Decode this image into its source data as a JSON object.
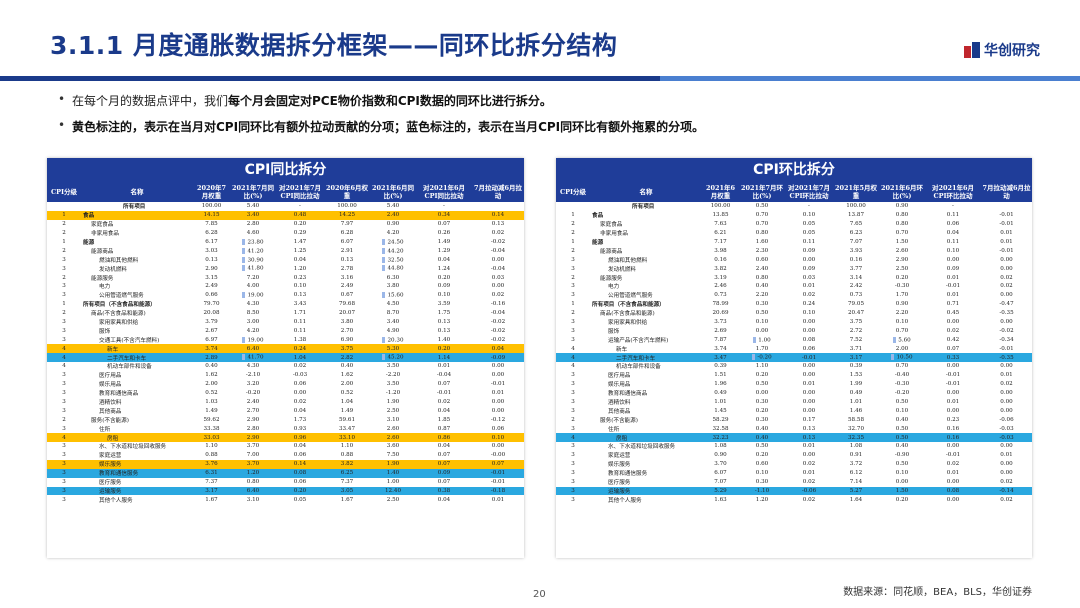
{
  "header": {
    "title": "3.1.1 月度通胀数据拆分框架——同环比拆分结构",
    "logo_text": "华创研究"
  },
  "bullets": [
    {
      "pre": "在每个月的数据点评中，我们",
      "bold": "每个月会固定对PCE物价指数和CPI数据的同环比进行拆分。",
      "post": ""
    },
    {
      "pre": "",
      "bold": "黄色标注的，表示在当月对CPI同环比有额外拉动贡献的分项；蓝色标注的，表示在当月CPI同环比有额外拖累的分项。",
      "post": ""
    }
  ],
  "left_table": {
    "title": "CPI同比拆分",
    "headers": [
      "CPI分级",
      "名称",
      "2020年7月权重",
      "2021年7月同比(%)",
      "对2021年7月CPI同比拉动",
      "2020年6月权重",
      "2021年6月同比(%)",
      "对2021年6月CPI同比拉动",
      "7月拉动减6月拉动"
    ],
    "rows": [
      [
        "",
        "所有项目",
        "100.00",
        "5.40",
        "-",
        "100.00",
        "5.40",
        "-",
        ""
      ],
      [
        "1",
        "食品",
        "14.15",
        "3.40",
        "0.48",
        "14.25",
        "2.40",
        "0.34",
        "0.14"
      ],
      [
        "2",
        "家庭食品",
        "7.85",
        "2.80",
        "0.20",
        "7.97",
        "0.90",
        "0.07",
        "0.13"
      ],
      [
        "2",
        "非家用食品",
        "6.28",
        "4.60",
        "0.29",
        "6.28",
        "4.20",
        "0.26",
        "0.02"
      ],
      [
        "1",
        "能源",
        "6.17",
        "23.80",
        "1.47",
        "6.07",
        "24.50",
        "1.49",
        "-0.02"
      ],
      [
        "2",
        "能源商品",
        "3.03",
        "41.20",
        "1.25",
        "2.91",
        "44.20",
        "1.29",
        "-0.04"
      ],
      [
        "3",
        "燃油和其他燃料",
        "0.13",
        "30.90",
        "0.04",
        "0.13",
        "32.50",
        "0.04",
        "0.00"
      ],
      [
        "3",
        "发动机燃料",
        "2.90",
        "41.80",
        "1.20",
        "2.78",
        "44.80",
        "1.24",
        "-0.04"
      ],
      [
        "2",
        "能源服务",
        "3.15",
        "7.20",
        "0.23",
        "3.16",
        "6.30",
        "0.20",
        "0.03"
      ],
      [
        "3",
        "电力",
        "2.49",
        "4.00",
        "0.10",
        "2.49",
        "3.80",
        "0.09",
        "0.00"
      ],
      [
        "3",
        "公用管道燃气服务",
        "0.66",
        "19.00",
        "0.13",
        "0.67",
        "15.60",
        "0.10",
        "0.02"
      ],
      [
        "1",
        "所有项目（不含食品和能源）",
        "79.70",
        "4.30",
        "3.43",
        "79.68",
        "4.50",
        "3.59",
        "-0.16"
      ],
      [
        "2",
        "商品(不含食品和能源)",
        "20.08",
        "8.50",
        "1.71",
        "20.07",
        "8.70",
        "1.75",
        "-0.04"
      ],
      [
        "3",
        "家用家具和供给",
        "3.79",
        "3.00",
        "0.11",
        "3.80",
        "3.40",
        "0.13",
        "-0.02"
      ],
      [
        "3",
        "服饰",
        "2.67",
        "4.20",
        "0.11",
        "2.70",
        "4.90",
        "0.13",
        "-0.02"
      ],
      [
        "3",
        "交通工具(不含汽车燃料)",
        "6.97",
        "19.00",
        "1.38",
        "6.90",
        "20.30",
        "1.40",
        "-0.02"
      ],
      [
        "4",
        "新车",
        "3.74",
        "6.40",
        "0.24",
        "3.75",
        "5.30",
        "0.20",
        "0.04"
      ],
      [
        "4",
        "二手汽车和卡车",
        "2.89",
        "41.70",
        "1.04",
        "2.82",
        "45.20",
        "1.14",
        "-0.09"
      ],
      [
        "4",
        "机动车部件和设备",
        "0.40",
        "4.30",
        "0.02",
        "0.40",
        "3.50",
        "0.01",
        "0.00"
      ],
      [
        "3",
        "医疗用品",
        "1.62",
        "-2.10",
        "-0.03",
        "1.62",
        "-2.20",
        "-0.04",
        "0.00"
      ],
      [
        "3",
        "娱乐用品",
        "2.00",
        "3.20",
        "0.06",
        "2.00",
        "3.50",
        "0.07",
        "-0.01"
      ],
      [
        "3",
        "教育和通信商品",
        "0.52",
        "-0.20",
        "0.00",
        "0.52",
        "-1.20",
        "-0.01",
        "0.01"
      ],
      [
        "3",
        "酒精饮料",
        "1.03",
        "2.40",
        "0.02",
        "1.04",
        "1.90",
        "0.02",
        "0.00"
      ],
      [
        "3",
        "其他商品",
        "1.49",
        "2.70",
        "0.04",
        "1.49",
        "2.50",
        "0.04",
        "0.00"
      ],
      [
        "2",
        "服务(不含能源)",
        "59.62",
        "2.90",
        "1.73",
        "59.61",
        "3.10",
        "1.85",
        "-0.12"
      ],
      [
        "3",
        "住所",
        "33.38",
        "2.80",
        "0.93",
        "33.47",
        "2.60",
        "0.87",
        "0.06"
      ],
      [
        "4",
        "房租",
        "33.03",
        "2.90",
        "0.96",
        "33.10",
        "2.60",
        "0.86",
        "0.10"
      ],
      [
        "3",
        "水、下水道和垃圾回收服务",
        "1.10",
        "3.70",
        "0.04",
        "1.10",
        "3.60",
        "0.04",
        "0.00"
      ],
      [
        "3",
        "家庭运营",
        "0.88",
        "7.00",
        "0.06",
        "0.88",
        "7.50",
        "0.07",
        "-0.00"
      ],
      [
        "3",
        "娱乐服务",
        "3.76",
        "3.70",
        "0.14",
        "3.82",
        "1.90",
        "0.07",
        "0.07"
      ],
      [
        "3",
        "教育和通信服务",
        "6.31",
        "1.20",
        "0.08",
        "6.25",
        "1.40",
        "0.09",
        "-0.01"
      ],
      [
        "3",
        "医疗服务",
        "7.37",
        "0.80",
        "0.06",
        "7.37",
        "1.00",
        "0.07",
        "-0.01"
      ],
      [
        "3",
        "运输服务",
        "3.17",
        "6.40",
        "0.20",
        "3.05",
        "12.40",
        "0.38",
        "-0.18"
      ],
      [
        "3",
        "其他个人服务",
        "1.67",
        "3.10",
        "0.05",
        "1.67",
        "2.50",
        "0.04",
        "0.01"
      ]
    ],
    "yellow_rows": [
      1,
      16,
      26,
      29
    ],
    "blue_rows": [
      17,
      30,
      32
    ],
    "bar_rows": [
      4,
      5,
      6,
      7,
      10,
      15,
      17
    ]
  },
  "right_table": {
    "title": "CPI环比拆分",
    "headers": [
      "CPI分级",
      "名称",
      "2021年6月权重",
      "2021年7月环比(%)",
      "对2021年7月CPI环比拉动",
      "2021年5月权重",
      "2021年6月环比(%)",
      "对2021年6月CPI环比拉动",
      "7月拉动减6月拉动"
    ],
    "rows": [
      [
        "",
        "所有项目",
        "100.00",
        "0.50",
        "-",
        "100.00",
        "0.90",
        "-",
        ""
      ],
      [
        "1",
        "食品",
        "13.85",
        "0.70",
        "0.10",
        "13.87",
        "0.80",
        "0.11",
        "-0.01"
      ],
      [
        "2",
        "家庭食品",
        "7.63",
        "0.70",
        "0.05",
        "7.65",
        "0.80",
        "0.06",
        "-0.01"
      ],
      [
        "2",
        "非家用食品",
        "6.21",
        "0.80",
        "0.05",
        "6.23",
        "0.70",
        "0.04",
        "0.01"
      ],
      [
        "1",
        "能源",
        "7.17",
        "1.60",
        "0.11",
        "7.07",
        "1.50",
        "0.11",
        "0.01"
      ],
      [
        "2",
        "能源商品",
        "3.98",
        "2.30",
        "0.09",
        "3.93",
        "2.60",
        "0.10",
        "-0.01"
      ],
      [
        "3",
        "燃油和其他燃料",
        "0.16",
        "0.60",
        "0.00",
        "0.16",
        "2.90",
        "0.00",
        "0.00"
      ],
      [
        "3",
        "发动机燃料",
        "3.82",
        "2.40",
        "0.09",
        "3.77",
        "2.50",
        "0.09",
        "0.00"
      ],
      [
        "2",
        "能源服务",
        "3.19",
        "0.80",
        "0.03",
        "3.14",
        "0.20",
        "0.01",
        "0.02"
      ],
      [
        "3",
        "电力",
        "2.46",
        "0.40",
        "0.01",
        "2.42",
        "-0.30",
        "-0.01",
        "0.02"
      ],
      [
        "3",
        "公用管道燃气服务",
        "0.73",
        "2.20",
        "0.02",
        "0.73",
        "1.70",
        "0.01",
        "0.00"
      ],
      [
        "1",
        "所有项目（不含食品和能源）",
        "78.99",
        "0.30",
        "0.24",
        "79.05",
        "0.90",
        "0.71",
        "-0.47"
      ],
      [
        "2",
        "商品(不含食品和能源)",
        "20.69",
        "0.50",
        "0.10",
        "20.47",
        "2.20",
        "0.45",
        "-0.35"
      ],
      [
        "3",
        "家用家具和供给",
        "3.73",
        "0.10",
        "0.00",
        "3.75",
        "0.10",
        "0.00",
        "0.00"
      ],
      [
        "3",
        "服饰",
        "2.69",
        "0.00",
        "0.00",
        "2.72",
        "0.70",
        "0.02",
        "-0.02"
      ],
      [
        "3",
        "运输产品(不含汽车燃料)",
        "7.87",
        "1.00",
        "0.08",
        "7.52",
        "5.60",
        "0.42",
        "-0.34"
      ],
      [
        "4",
        "新车",
        "3.74",
        "1.70",
        "0.06",
        "3.71",
        "2.00",
        "0.07",
        "-0.01"
      ],
      [
        "4",
        "二手汽车和卡车",
        "3.47",
        "-0.20",
        "-0.01",
        "3.17",
        "10.50",
        "0.33",
        "-0.35"
      ],
      [
        "4",
        "机动车部件和设备",
        "0.39",
        "1.10",
        "0.00",
        "0.39",
        "0.70",
        "0.00",
        "0.00"
      ],
      [
        "3",
        "医疗用品",
        "1.51",
        "0.20",
        "0.00",
        "1.53",
        "-0.40",
        "-0.01",
        "0.01"
      ],
      [
        "3",
        "娱乐用品",
        "1.96",
        "0.50",
        "0.01",
        "1.99",
        "-0.30",
        "-0.01",
        "0.02"
      ],
      [
        "3",
        "教育和通信商品",
        "0.49",
        "0.00",
        "0.00",
        "0.49",
        "-0.20",
        "0.00",
        "0.00"
      ],
      [
        "3",
        "酒精饮料",
        "1.01",
        "0.30",
        "0.00",
        "1.01",
        "0.50",
        "0.01",
        "0.00"
      ],
      [
        "3",
        "其他商品",
        "1.45",
        "0.20",
        "0.00",
        "1.46",
        "0.10",
        "0.00",
        "0.00"
      ],
      [
        "2",
        "服务(不含能源)",
        "58.29",
        "0.30",
        "0.17",
        "58.58",
        "0.40",
        "0.23",
        "-0.06"
      ],
      [
        "3",
        "住所",
        "32.58",
        "0.40",
        "0.13",
        "32.70",
        "0.50",
        "0.16",
        "-0.03"
      ],
      [
        "4",
        "房租",
        "32.23",
        "0.40",
        "0.13",
        "32.35",
        "0.50",
        "0.16",
        "-0.03"
      ],
      [
        "3",
        "水、下水道和垃圾回收服务",
        "1.08",
        "0.50",
        "0.01",
        "1.08",
        "0.40",
        "0.00",
        "0.00"
      ],
      [
        "3",
        "家庭运营",
        "0.90",
        "0.20",
        "0.00",
        "0.91",
        "-0.90",
        "-0.01",
        "0.01"
      ],
      [
        "3",
        "娱乐服务",
        "3.70",
        "0.60",
        "0.02",
        "3.72",
        "0.50",
        "0.02",
        "0.00"
      ],
      [
        "3",
        "教育和通信服务",
        "6.07",
        "0.10",
        "0.01",
        "6.12",
        "0.10",
        "0.01",
        "0.00"
      ],
      [
        "3",
        "医疗服务",
        "7.07",
        "0.30",
        "0.02",
        "7.14",
        "0.00",
        "0.00",
        "0.02"
      ],
      [
        "3",
        "运输服务",
        "5.29",
        "-1.10",
        "-0.06",
        "5.27",
        "1.50",
        "0.08",
        "-0.14"
      ],
      [
        "3",
        "其他个人服务",
        "1.63",
        "1.20",
        "0.02",
        "1.64",
        "0.20",
        "0.00",
        "0.02"
      ]
    ],
    "yellow_rows": [],
    "blue_rows": [
      17,
      26,
      32
    ],
    "bar_rows": [
      15,
      17
    ]
  },
  "footer": {
    "page_number": "20",
    "source": "数据来源：同花顺，BEA，BLS，华创证券"
  },
  "colors": {
    "brand_blue": "#1f3d99",
    "highlight_yellow": "#ffc000",
    "highlight_blue": "#2aa8e0"
  }
}
